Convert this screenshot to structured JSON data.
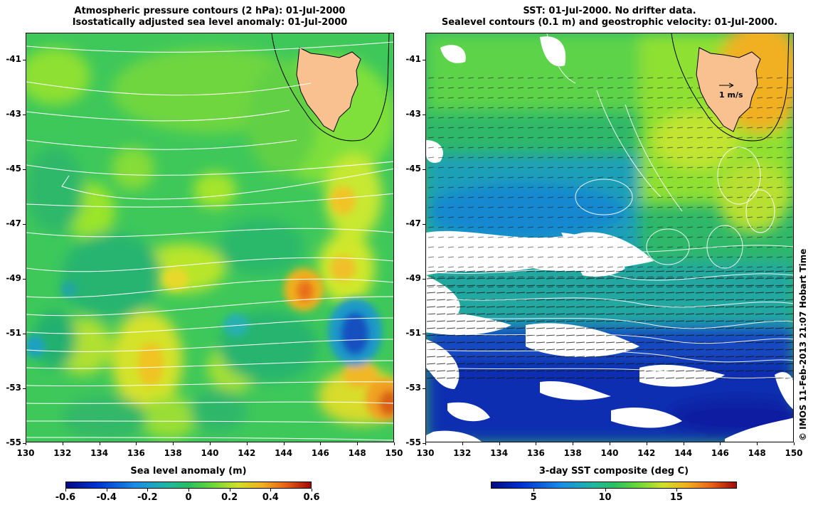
{
  "left_panel": {
    "title_line1": "Atmospheric pressure contours (2 hPa): 01-Jul-2000",
    "title_line2": "Isostatically adjusted sea level anomaly: 01-Jul-2000",
    "colorbar": {
      "label": "Sea level anomaly (m)",
      "ticks": [
        "-0.6",
        "-0.4",
        "-0.2",
        "0",
        "0.2",
        "0.4",
        "0.6"
      ]
    }
  },
  "right_panel": {
    "title_line1": "SST: 01-Jul-2000. No drifter data.",
    "title_line2": "Sealevel contours (0.1 m) and geostrophic velocity: 01-Jul-2000.",
    "velocity_scale_label": "1 m/s",
    "colorbar": {
      "label": "3-day SST composite (deg C)",
      "ticks": [
        "5",
        "10",
        "15"
      ]
    }
  },
  "axes": {
    "y_ticks": [
      "-41",
      "-43",
      "-45",
      "-47",
      "-49",
      "-51",
      "-53",
      "-55"
    ],
    "x_ticks": [
      "130",
      "132",
      "134",
      "136",
      "138",
      "140",
      "142",
      "144",
      "146",
      "148",
      "150"
    ]
  },
  "credit": "© IMOS 11-Feb-2013 21:07 Hobart Time",
  "colors": {
    "land": "#f9c090",
    "contour": "#ffffff"
  }
}
